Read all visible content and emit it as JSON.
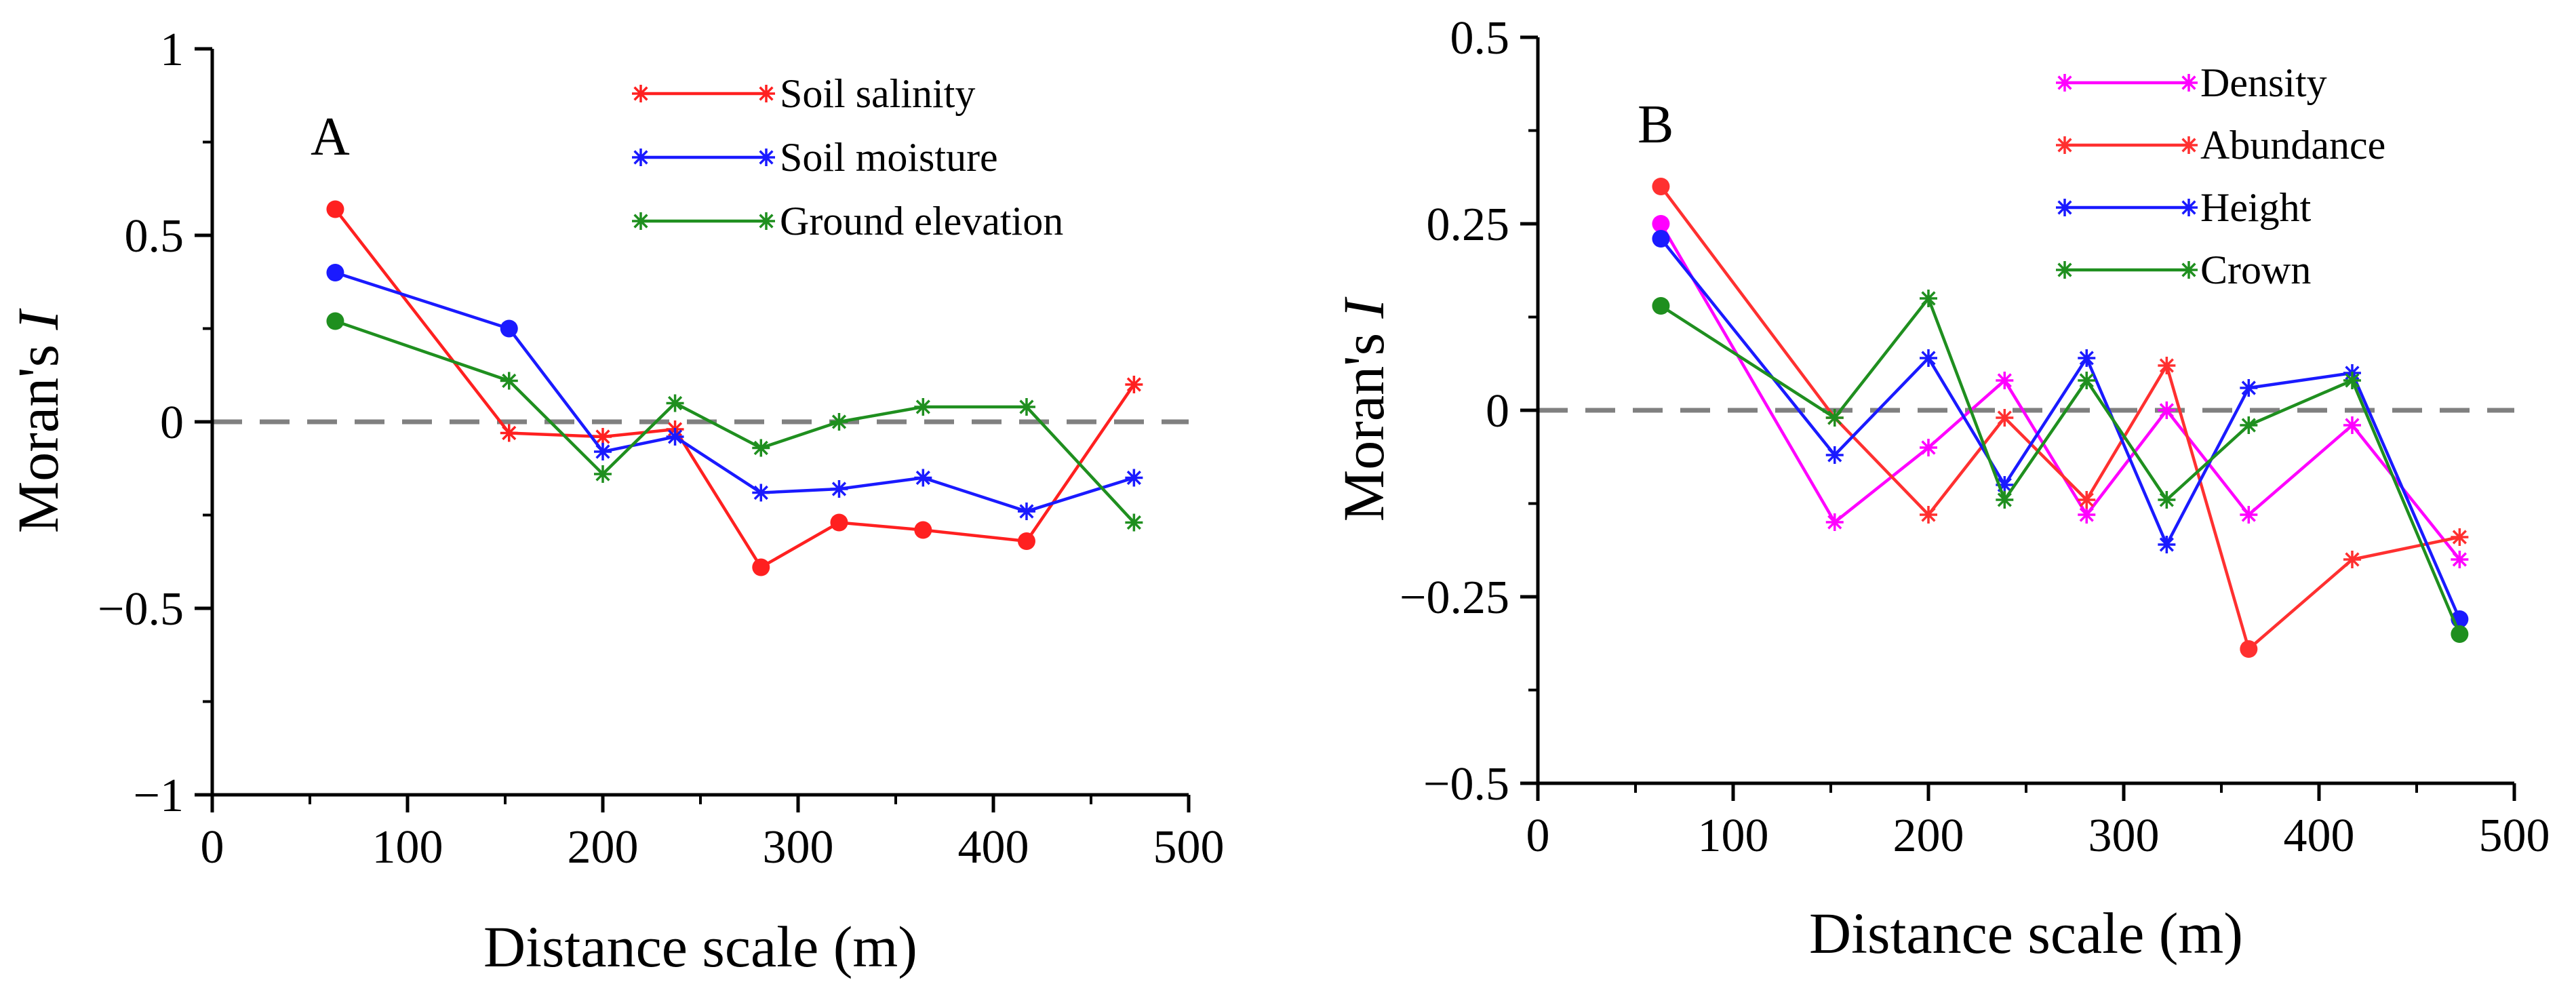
{
  "chart_data": [
    {
      "type": "line",
      "panel_label": "A",
      "xlabel": "Distance scale (m)",
      "ylabel_prefix": "Moran's ",
      "ylabel_italic": "I",
      "xlim": [
        0,
        500
      ],
      "ylim": [
        -1,
        1
      ],
      "xticks": [
        0,
        100,
        200,
        300,
        400,
        500
      ],
      "xtick_labels": [
        "0",
        "100",
        "200",
        "300",
        "400",
        "500"
      ],
      "yticks": [
        1,
        0.5,
        0,
        -0.5,
        -1
      ],
      "ytick_labels": [
        "1",
        "0.5",
        "0",
        "−0.5",
        "−1"
      ],
      "reference_line": 0,
      "legend_position": "top-right",
      "x": [
        63,
        152,
        200,
        237,
        281,
        321,
        364,
        417,
        472
      ],
      "series": [
        {
          "name": "Soil salinity",
          "color": "#ff2020",
          "values": [
            0.57,
            -0.03,
            -0.04,
            -0.02,
            -0.39,
            -0.27,
            -0.29,
            -0.32,
            0.1
          ],
          "significant": [
            true,
            false,
            false,
            false,
            true,
            true,
            true,
            true,
            false
          ]
        },
        {
          "name": "Soil moisture",
          "color": "#1a1aff",
          "values": [
            0.4,
            0.25,
            -0.08,
            -0.04,
            -0.19,
            -0.18,
            -0.15,
            -0.24,
            -0.15
          ],
          "significant": [
            true,
            true,
            false,
            false,
            false,
            false,
            false,
            false,
            false
          ]
        },
        {
          "name": "Ground elevation",
          "color": "#1f8f1f",
          "values": [
            0.27,
            0.11,
            -0.14,
            0.05,
            -0.07,
            0.0,
            0.04,
            0.04,
            -0.27
          ],
          "significant": [
            true,
            false,
            false,
            false,
            false,
            false,
            false,
            false,
            false
          ]
        }
      ]
    },
    {
      "type": "line",
      "panel_label": "B",
      "xlabel": "Distance scale (m)",
      "ylabel_prefix": "Moran's ",
      "ylabel_italic": "I",
      "xlim": [
        0,
        500
      ],
      "ylim": [
        -0.5,
        0.5
      ],
      "xticks": [
        0,
        100,
        200,
        300,
        400,
        500
      ],
      "xtick_labels": [
        "0",
        "100",
        "200",
        "300",
        "400",
        "500"
      ],
      "yticks": [
        0.5,
        0.25,
        0,
        -0.25,
        -0.5
      ],
      "ytick_labels": [
        "0.5",
        "0.25",
        "0",
        "−0.25",
        "−0.5"
      ],
      "reference_line": 0,
      "legend_position": "top-right",
      "x": [
        63,
        152,
        200,
        239,
        281,
        322,
        364,
        417,
        472
      ],
      "series": [
        {
          "name": "Density",
          "color": "#ff00ff",
          "values": [
            0.25,
            -0.15,
            -0.05,
            0.04,
            -0.14,
            0.0,
            -0.14,
            -0.02,
            -0.2
          ],
          "significant": [
            true,
            false,
            false,
            false,
            false,
            false,
            false,
            false,
            false
          ]
        },
        {
          "name": "Abundance",
          "color": "#ff3030",
          "values": [
            0.3,
            -0.01,
            -0.14,
            -0.01,
            -0.12,
            0.06,
            -0.32,
            -0.2,
            -0.17
          ],
          "significant": [
            true,
            false,
            false,
            false,
            false,
            false,
            true,
            false,
            false
          ]
        },
        {
          "name": "Height",
          "color": "#1a1aff",
          "values": [
            0.23,
            -0.06,
            0.07,
            -0.1,
            0.07,
            -0.18,
            0.03,
            0.05,
            -0.28
          ],
          "significant": [
            true,
            false,
            false,
            false,
            false,
            false,
            false,
            false,
            true
          ]
        },
        {
          "name": "Crown",
          "color": "#1f8f1f",
          "values": [
            0.14,
            -0.01,
            0.15,
            -0.12,
            0.04,
            -0.12,
            -0.02,
            0.04,
            -0.3
          ],
          "significant": [
            true,
            false,
            false,
            false,
            false,
            false,
            false,
            false,
            true
          ]
        }
      ]
    }
  ]
}
